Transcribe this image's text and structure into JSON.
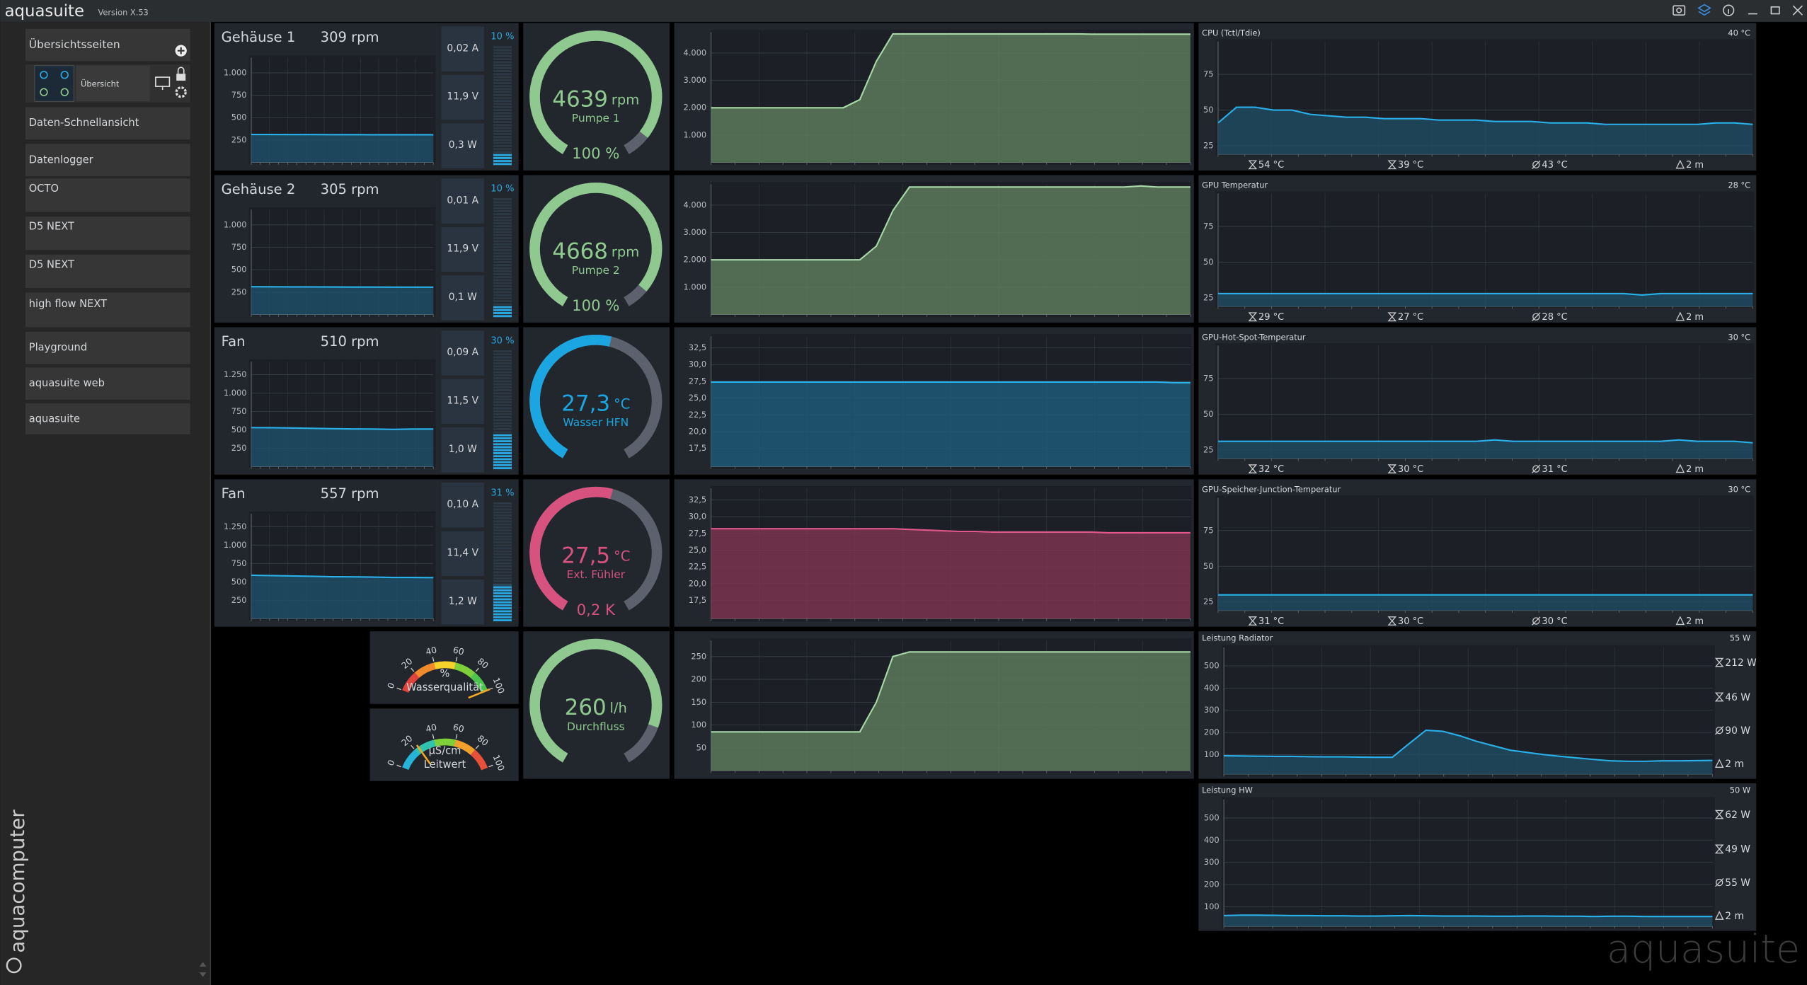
{
  "header": {
    "app_name": "aquasuite",
    "version": "Version X.53"
  },
  "sidebar": {
    "section": "Übersichtsseiten",
    "page": "Übersicht",
    "items": [
      "Daten-Schnellansicht",
      "Datenlogger",
      "OCTO",
      "D5 NEXT",
      "D5 NEXT",
      "high flow NEXT",
      "Playground",
      "aquasuite web",
      "aquasuite"
    ],
    "brand": "aquacomputer"
  },
  "watermark": "aquasuite",
  "fans": [
    {
      "name": "Gehäuse 1",
      "speed": "309 rpm",
      "readings": [
        "0,02 A",
        "11,9 V",
        "0,3 W"
      ],
      "percent": {
        "value": 10,
        "label": "10 %"
      },
      "chart": {
        "ylim": [
          0,
          1170
        ],
        "yticks": [
          250,
          500,
          750,
          {
            "value": 1000,
            "label": "1.000"
          }
        ],
        "values": [
          312,
          312,
          311,
          311,
          310,
          310,
          309,
          309,
          309,
          309
        ]
      }
    },
    {
      "name": "Gehäuse 2",
      "speed": "305 rpm",
      "readings": [
        "0,01 A",
        "11,9 V",
        "0,1 W"
      ],
      "percent": {
        "value": 10,
        "label": "10 %"
      },
      "chart": {
        "ylim": [
          0,
          1170
        ],
        "yticks": [
          250,
          500,
          750,
          {
            "value": 1000,
            "label": "1.000"
          }
        ],
        "values": [
          310,
          309,
          308,
          308,
          307,
          306,
          306,
          305,
          305,
          305
        ]
      }
    },
    {
      "name": "Fan",
      "speed": "510 rpm",
      "readings": [
        "0,09 A",
        "11,5 V",
        "1,0 W"
      ],
      "percent": {
        "value": 30,
        "label": "30 %"
      },
      "chart": {
        "ylim": [
          0,
          1425
        ],
        "yticks": [
          250,
          500,
          750,
          {
            "value": 1000,
            "label": "1.000"
          },
          {
            "value": 1250,
            "label": "1.250"
          }
        ],
        "values": [
          530,
          528,
          525,
          520,
          515,
          512,
          510,
          505,
          510,
          510
        ]
      }
    },
    {
      "name": "Fan",
      "speed": "557 rpm",
      "readings": [
        "0,10 A",
        "11,4 V",
        "1,2 W"
      ],
      "percent": {
        "value": 31,
        "label": "31 %"
      },
      "chart": {
        "ylim": [
          0,
          1425
        ],
        "yticks": [
          250,
          500,
          750,
          {
            "value": 1000,
            "label": "1.000"
          },
          {
            "value": 1250,
            "label": "1.250"
          }
        ],
        "values": [
          590,
          585,
          580,
          575,
          570,
          568,
          565,
          560,
          560,
          557
        ]
      }
    }
  ],
  "gauges": [
    {
      "value": 4639,
      "unit": "rpm",
      "label": "Pumpe 1",
      "footer": "100 %",
      "range": [
        0,
        5000
      ],
      "color": "#8fc98f"
    },
    {
      "value": 4668,
      "unit": "rpm",
      "label": "Pumpe 2",
      "footer": "100 %",
      "range": [
        0,
        5000
      ],
      "color": "#8fc98f"
    },
    {
      "value": {
        "value": 27.3,
        "label": "27,3"
      },
      "unit": "°C",
      "label": "Wasser HFN",
      "range": [
        0,
        50
      ],
      "color": "#1ba6e2"
    },
    {
      "value": {
        "value": 27.5,
        "label": "27,5"
      },
      "unit": "°C",
      "label": "Ext. Fühler",
      "footer": "0,2 K",
      "range": [
        0,
        50
      ],
      "color": "#d8527f"
    },
    {
      "value": 260,
      "unit": "l/h",
      "label": "Durchfluss",
      "range": [
        0,
        300
      ],
      "color": "#8fc98f"
    }
  ],
  "history": [
    {
      "fill": "#5b7a5b",
      "line": "#a8d8a8",
      "ylim": [
        0,
        4760
      ],
      "yticks": [
        {
          "value": 1000,
          "label": "1.000"
        },
        {
          "value": 2000,
          "label": "2.000"
        },
        {
          "value": 3000,
          "label": "3.000"
        },
        {
          "value": 4000,
          "label": "4.000"
        }
      ],
      "values": [
        2000,
        2000,
        2000,
        2000,
        2000,
        2000,
        2000,
        2000,
        2000,
        2300,
        3700,
        4700,
        4700,
        4700,
        4700,
        4700,
        4700,
        4700,
        4700,
        4700,
        4700,
        4700,
        4700,
        4690,
        4690,
        4690,
        4690,
        4690,
        4690,
        4690
      ]
    },
    {
      "fill": "#5b7a5b",
      "line": "#a8d8a8",
      "ylim": [
        0,
        4760
      ],
      "yticks": [
        {
          "value": 1000,
          "label": "1.000"
        },
        {
          "value": 2000,
          "label": "2.000"
        },
        {
          "value": 3000,
          "label": "3.000"
        },
        {
          "value": 4000,
          "label": "4.000"
        }
      ],
      "values": [
        2000,
        2000,
        2000,
        2000,
        2000,
        2000,
        2000,
        2000,
        2000,
        2000,
        2500,
        3800,
        4660,
        4660,
        4660,
        4660,
        4660,
        4660,
        4660,
        4660,
        4660,
        4660,
        4660,
        4660,
        4660,
        4660,
        4700,
        4660,
        4660,
        4660
      ]
    },
    {
      "fill": "#1d5a78",
      "line": "#2ab2ea",
      "ylim": [
        14.8,
        34.2
      ],
      "yticks": [
        {
          "value": 17.5,
          "label": "17,5"
        },
        {
          "value": 20,
          "label": "20,0"
        },
        {
          "value": 22.5,
          "label": "22,5"
        },
        {
          "value": 25,
          "label": "25,0"
        },
        {
          "value": 27.5,
          "label": "27,5"
        },
        {
          "value": 30,
          "label": "30,0"
        },
        {
          "value": 32.5,
          "label": "32,5"
        }
      ],
      "values": [
        27.4,
        27.4,
        27.4,
        27.4,
        27.4,
        27.4,
        27.4,
        27.4,
        27.4,
        27.4,
        27.4,
        27.4,
        27.4,
        27.4,
        27.4,
        27.4,
        27.4,
        27.4,
        27.4,
        27.4,
        27.4,
        27.4,
        27.4,
        27.4,
        27.4,
        27.4,
        27.4,
        27.4,
        27.3,
        27.3
      ]
    },
    {
      "fill": "#7a3550",
      "line": "#e0588b",
      "ylim": [
        14.8,
        34.2
      ],
      "yticks": [
        {
          "value": 17.5,
          "label": "17,5"
        },
        {
          "value": 20,
          "label": "20,0"
        },
        {
          "value": 22.5,
          "label": "22,5"
        },
        {
          "value": 25,
          "label": "25,0"
        },
        {
          "value": 27.5,
          "label": "27,5"
        },
        {
          "value": 30,
          "label": "30,0"
        },
        {
          "value": 32.5,
          "label": "32,5"
        }
      ],
      "values": [
        28.2,
        28.2,
        28.2,
        28.2,
        28.2,
        28.2,
        28.2,
        28.2,
        28.2,
        28.2,
        28.2,
        28.2,
        28.1,
        28.0,
        27.9,
        27.8,
        27.8,
        27.7,
        27.7,
        27.7,
        27.7,
        27.7,
        27.7,
        27.7,
        27.6,
        27.6,
        27.6,
        27.6,
        27.6,
        27.6
      ]
    },
    {
      "fill": "#5b7a5b",
      "line": "#a8d8a8",
      "ylim": [
        0,
        285
      ],
      "yticks": [
        50,
        100,
        150,
        200,
        250
      ],
      "values": [
        85,
        85,
        85,
        85,
        85,
        85,
        85,
        85,
        85,
        85,
        150,
        250,
        260,
        260,
        260,
        260,
        260,
        260,
        260,
        260,
        260,
        260,
        260,
        260,
        260,
        260,
        260,
        260,
        260,
        260
      ]
    }
  ],
  "dials": [
    {
      "unit": "%",
      "label": "Wasserqualität",
      "ticks": [
        0,
        20,
        40,
        60,
        80,
        100
      ],
      "value": 100
    },
    {
      "unit": "µS/cm",
      "label": "Leitwert",
      "ticks": [
        0,
        20,
        40,
        60,
        80,
        100
      ],
      "value": 24
    }
  ],
  "sensors": [
    {
      "title": "CPU (Tctl/Tdie)",
      "current": "40 °C",
      "ylim": [
        19,
        98
      ],
      "yticks": [
        25,
        50,
        75
      ],
      "stats": [
        "54 °C",
        "39 °C",
        "43 °C",
        "2 m"
      ],
      "values": [
        41,
        52,
        52,
        50,
        50,
        47,
        46,
        45,
        45,
        44,
        44,
        44,
        43,
        43,
        43,
        42,
        42,
        42,
        41,
        41,
        41,
        40,
        40,
        40,
        40,
        40,
        40,
        41,
        41,
        40
      ]
    },
    {
      "title": "GPU Temperatur",
      "current": "28 °C",
      "ylim": [
        19,
        98
      ],
      "yticks": [
        25,
        50,
        75
      ],
      "stats": [
        "29 °C",
        "27 °C",
        "28 °C",
        "2 m"
      ],
      "values": [
        28,
        28,
        28,
        28,
        28,
        28,
        28,
        28,
        28,
        28,
        28,
        28,
        28,
        28,
        28,
        28,
        28,
        28,
        28,
        28,
        28,
        28,
        28,
        27,
        28,
        28,
        28,
        28,
        28,
        28
      ]
    },
    {
      "title": "GPU-Hot-Spot-Temperatur",
      "current": "30 °C",
      "ylim": [
        19,
        98
      ],
      "yticks": [
        25,
        50,
        75
      ],
      "stats": [
        "32 °C",
        "30 °C",
        "31 °C",
        "2 m"
      ],
      "values": [
        31,
        31,
        31,
        31,
        31,
        31,
        31,
        31,
        31,
        31,
        31,
        31,
        31,
        31,
        31,
        32,
        31,
        31,
        31,
        31,
        31,
        31,
        31,
        31,
        31,
        32,
        31,
        31,
        31,
        30
      ]
    },
    {
      "title": "GPU-Speicher-Junction-Temperatur",
      "current": "30 °C",
      "ylim": [
        19,
        98
      ],
      "yticks": [
        25,
        50,
        75
      ],
      "stats": [
        "31 °C",
        "30 °C",
        "30 °C",
        "2 m"
      ],
      "values": [
        30,
        30,
        30,
        30,
        30,
        30,
        30,
        30,
        30,
        30,
        30,
        30,
        30,
        30,
        30,
        30,
        30,
        30,
        30,
        30,
        30,
        30,
        30,
        30,
        30,
        30,
        30,
        30,
        30,
        30
      ]
    }
  ],
  "power_sensors": [
    {
      "title": "Leistung Radiator",
      "current": "55 W",
      "ylim": [
        12,
        583
      ],
      "yticks": [
        100,
        200,
        300,
        400,
        500
      ],
      "stats": [
        "212 W",
        "46 W",
        "90 W",
        "2 m"
      ],
      "values": [
        95,
        94,
        93,
        92,
        92,
        91,
        90,
        90,
        89,
        88,
        88,
        150,
        210,
        205,
        185,
        160,
        140,
        120,
        110,
        100,
        92,
        85,
        78,
        72,
        70,
        70,
        72,
        72,
        73,
        74
      ]
    },
    {
      "title": "Leistung HW",
      "current": "50 W",
      "ylim": [
        12,
        583
      ],
      "yticks": [
        100,
        200,
        300,
        400,
        500
      ],
      "stats": [
        "62 W",
        "49 W",
        "55 W",
        "2 m"
      ],
      "values": [
        60,
        62,
        62,
        61,
        60,
        60,
        59,
        59,
        58,
        58,
        59,
        60,
        59,
        58,
        58,
        58,
        57,
        57,
        58,
        58,
        57,
        57,
        56,
        57,
        57,
        56,
        56,
        56,
        56,
        56
      ]
    }
  ]
}
